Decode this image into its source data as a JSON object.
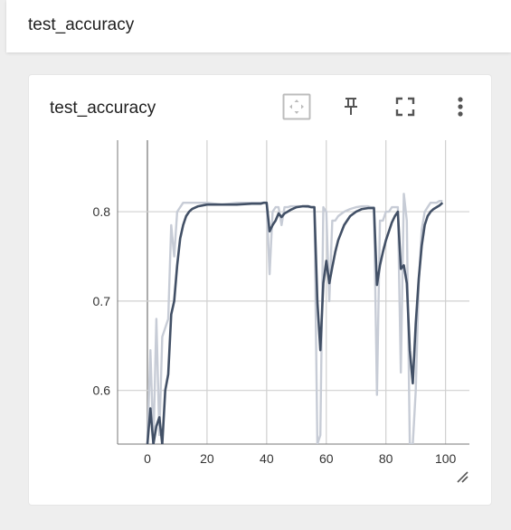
{
  "header": {
    "title": "test_accuracy"
  },
  "card": {
    "title": "test_accuracy",
    "toolbar": {
      "fit_icon": "fit-to-data-icon",
      "pin_icon": "pin-icon",
      "fullscreen_icon": "fullscreen-icon",
      "menu_icon": "more-vert-icon"
    }
  },
  "chart_data": {
    "type": "line",
    "title": "",
    "xlabel": "",
    "ylabel": "",
    "xlim": [
      -10,
      108
    ],
    "ylim": [
      0.54,
      0.88
    ],
    "x_ticks": [
      0,
      20,
      40,
      60,
      80,
      100
    ],
    "y_ticks": [
      0.6,
      0.7,
      0.8
    ],
    "grid": true,
    "colors": {
      "smoothed": "#425066",
      "raw": "#c7ccd6",
      "grid": "#d0d0d0",
      "zero_axis": "#aaaaaa"
    },
    "series": [
      {
        "x": [
          0,
          1,
          2,
          3,
          4,
          5,
          6,
          7,
          8,
          9,
          10,
          11,
          12,
          13,
          14,
          15,
          17,
          20,
          25,
          30,
          35,
          38,
          39,
          40,
          41,
          42,
          43,
          44,
          45,
          46,
          47,
          48,
          50,
          52,
          54,
          55,
          56,
          57,
          58,
          59,
          60,
          61,
          62,
          63,
          64,
          66,
          68,
          70,
          72,
          74,
          75,
          76,
          77,
          78,
          79,
          80,
          81,
          82,
          83,
          84,
          85,
          86,
          87,
          88,
          89,
          90,
          91,
          92,
          93,
          94,
          95,
          96,
          97,
          98,
          99
        ],
        "values": [
          0.46,
          0.645,
          0.52,
          0.68,
          0.55,
          0.66,
          0.67,
          0.68,
          0.785,
          0.75,
          0.8,
          0.805,
          0.81,
          0.81,
          0.81,
          0.81,
          0.81,
          0.81,
          0.808,
          0.81,
          0.81,
          0.81,
          0.81,
          0.81,
          0.73,
          0.8,
          0.805,
          0.805,
          0.785,
          0.805,
          0.805,
          0.806,
          0.806,
          0.806,
          0.805,
          0.805,
          0.805,
          0.54,
          0.55,
          0.805,
          0.8,
          0.7,
          0.79,
          0.79,
          0.795,
          0.8,
          0.803,
          0.805,
          0.806,
          0.806,
          0.805,
          0.805,
          0.595,
          0.79,
          0.79,
          0.8,
          0.8,
          0.805,
          0.805,
          0.805,
          0.62,
          0.82,
          0.79,
          0.51,
          0.5,
          0.6,
          0.72,
          0.78,
          0.8,
          0.805,
          0.81,
          0.81,
          0.81,
          0.812,
          0.812
        ]
      },
      {
        "x": [
          0,
          1,
          2,
          3,
          4,
          5,
          6,
          7,
          8,
          9,
          10,
          11,
          12,
          13,
          14,
          15,
          17,
          20,
          25,
          30,
          35,
          38,
          39,
          40,
          41,
          42,
          43,
          44,
          45,
          46,
          47,
          48,
          50,
          52,
          54,
          55,
          56,
          57,
          58,
          59,
          60,
          61,
          62,
          63,
          64,
          66,
          68,
          70,
          72,
          74,
          75,
          76,
          77,
          78,
          79,
          80,
          81,
          82,
          83,
          84,
          85,
          86,
          87,
          88,
          89,
          90,
          91,
          92,
          93,
          94,
          95,
          96,
          97,
          98,
          99
        ],
        "values": [
          0.49,
          0.58,
          0.53,
          0.56,
          0.57,
          0.54,
          0.6,
          0.618,
          0.685,
          0.7,
          0.74,
          0.77,
          0.785,
          0.795,
          0.8,
          0.803,
          0.806,
          0.808,
          0.808,
          0.808,
          0.809,
          0.809,
          0.81,
          0.81,
          0.778,
          0.785,
          0.79,
          0.798,
          0.794,
          0.798,
          0.8,
          0.802,
          0.805,
          0.806,
          0.806,
          0.805,
          0.805,
          0.7,
          0.645,
          0.72,
          0.745,
          0.72,
          0.738,
          0.755,
          0.768,
          0.785,
          0.795,
          0.8,
          0.803,
          0.804,
          0.804,
          0.804,
          0.718,
          0.74,
          0.755,
          0.768,
          0.778,
          0.788,
          0.795,
          0.8,
          0.736,
          0.74,
          0.72,
          0.645,
          0.608,
          0.675,
          0.725,
          0.762,
          0.785,
          0.795,
          0.8,
          0.803,
          0.805,
          0.807,
          0.81
        ]
      }
    ]
  }
}
